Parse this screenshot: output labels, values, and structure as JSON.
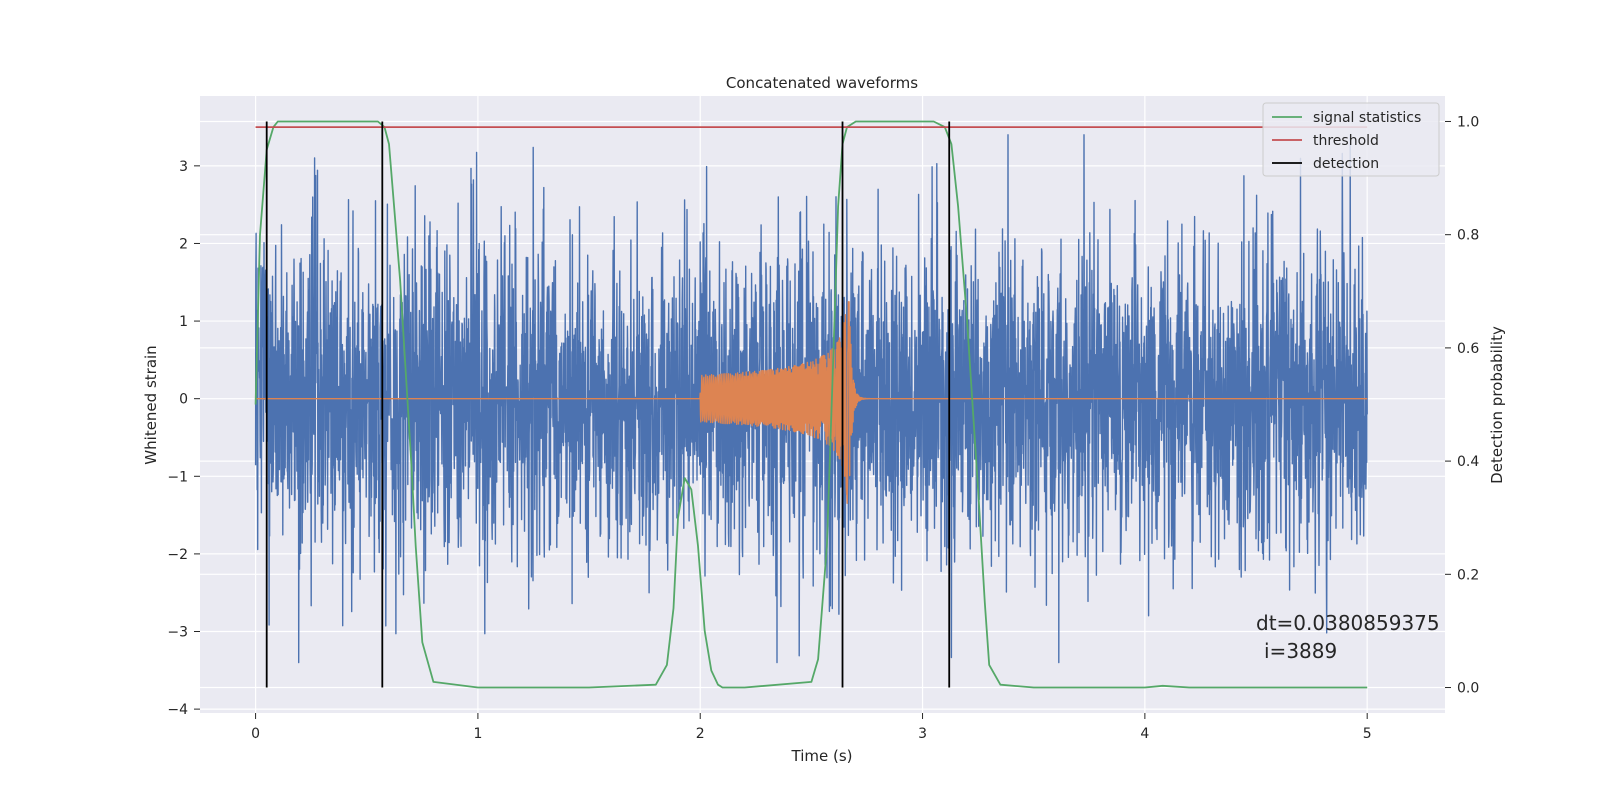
{
  "chart_data": {
    "type": "line",
    "title": "Concatenated waveforms",
    "xlabel": "Time (s)",
    "ylabel": "Whitened strain",
    "ylabel_right": "Detection probability",
    "xlim": [
      -0.25,
      5.35
    ],
    "ylim": [
      -4.05,
      3.9
    ],
    "ylim_right": [
      -0.045,
      1.045
    ],
    "xticks": [
      0,
      1,
      2,
      3,
      4,
      5
    ],
    "xtick_labels": [
      "0",
      "1",
      "2",
      "3",
      "4",
      "5"
    ],
    "yticks": [
      -4,
      -3,
      -2,
      -1,
      0,
      1,
      2,
      3
    ],
    "ytick_labels": [
      "−4",
      "−3",
      "−2",
      "−1",
      "0",
      "1",
      "2",
      "3"
    ],
    "yticks_right": [
      0.0,
      0.2,
      0.4,
      0.6,
      0.8,
      1.0
    ],
    "ytick_labels_right": [
      "0.0",
      "0.2",
      "0.4",
      "0.6",
      "0.8",
      "1.0"
    ],
    "grid": true,
    "legend_position": "top-right",
    "legend": [
      {
        "label": "signal statistics",
        "color": "#55a868"
      },
      {
        "label": "threshold",
        "color": "#c44e52"
      },
      {
        "label": "detection",
        "color": "#000000"
      }
    ],
    "series": [
      {
        "kind": "noise",
        "axis": "left",
        "color": "#4c72b0",
        "x_range": [
          0,
          5
        ],
        "amplitude_typical": 1.0,
        "amplitude_peak": 3.4
      },
      {
        "kind": "chirp",
        "axis": "left",
        "color": "#dd8452",
        "x_start": 2.0,
        "x_merger": 2.67,
        "peak": 1.35,
        "x_range": [
          0,
          5
        ]
      },
      {
        "kind": "probability",
        "axis": "right",
        "color": "#55a868",
        "x": [
          0.0,
          0.02,
          0.05,
          0.08,
          0.1,
          0.15,
          0.2,
          0.3,
          0.5,
          0.55,
          0.58,
          0.6,
          0.65,
          0.7,
          0.72,
          0.75,
          0.8,
          1.0,
          1.5,
          1.8,
          1.85,
          1.88,
          1.9,
          1.93,
          1.96,
          1.99,
          2.02,
          2.05,
          2.08,
          2.1,
          2.2,
          2.5,
          2.53,
          2.57,
          2.6,
          2.62,
          2.64,
          2.66,
          2.7,
          2.75,
          2.8,
          3.05,
          3.1,
          3.13,
          3.16,
          3.2,
          3.25,
          3.28,
          3.3,
          3.35,
          3.5,
          4.0,
          4.08,
          4.2,
          5.0
        ],
        "y": [
          0.5,
          0.8,
          0.95,
          0.99,
          1.0,
          1.0,
          1.0,
          1.0,
          1.0,
          1.0,
          0.99,
          0.96,
          0.72,
          0.4,
          0.25,
          0.08,
          0.01,
          0.0,
          0.0,
          0.005,
          0.04,
          0.14,
          0.3,
          0.37,
          0.35,
          0.25,
          0.1,
          0.03,
          0.005,
          0.0,
          0.0,
          0.01,
          0.05,
          0.25,
          0.6,
          0.85,
          0.96,
          0.99,
          1.0,
          1.0,
          1.0,
          1.0,
          0.99,
          0.96,
          0.85,
          0.65,
          0.35,
          0.15,
          0.04,
          0.005,
          0.0,
          0.0,
          0.003,
          0.0,
          0.0
        ]
      },
      {
        "kind": "threshold",
        "axis": "right",
        "color": "#c44e52",
        "x_range": [
          0,
          5
        ],
        "value": 0.99
      },
      {
        "kind": "detection",
        "axis": "right",
        "color": "#000000",
        "x": [
          0.05,
          0.57,
          2.64,
          3.12
        ],
        "y_range": [
          0.0,
          1.0
        ]
      }
    ],
    "annotations": [
      "dt=0.0380859375",
      "i=3889"
    ]
  }
}
